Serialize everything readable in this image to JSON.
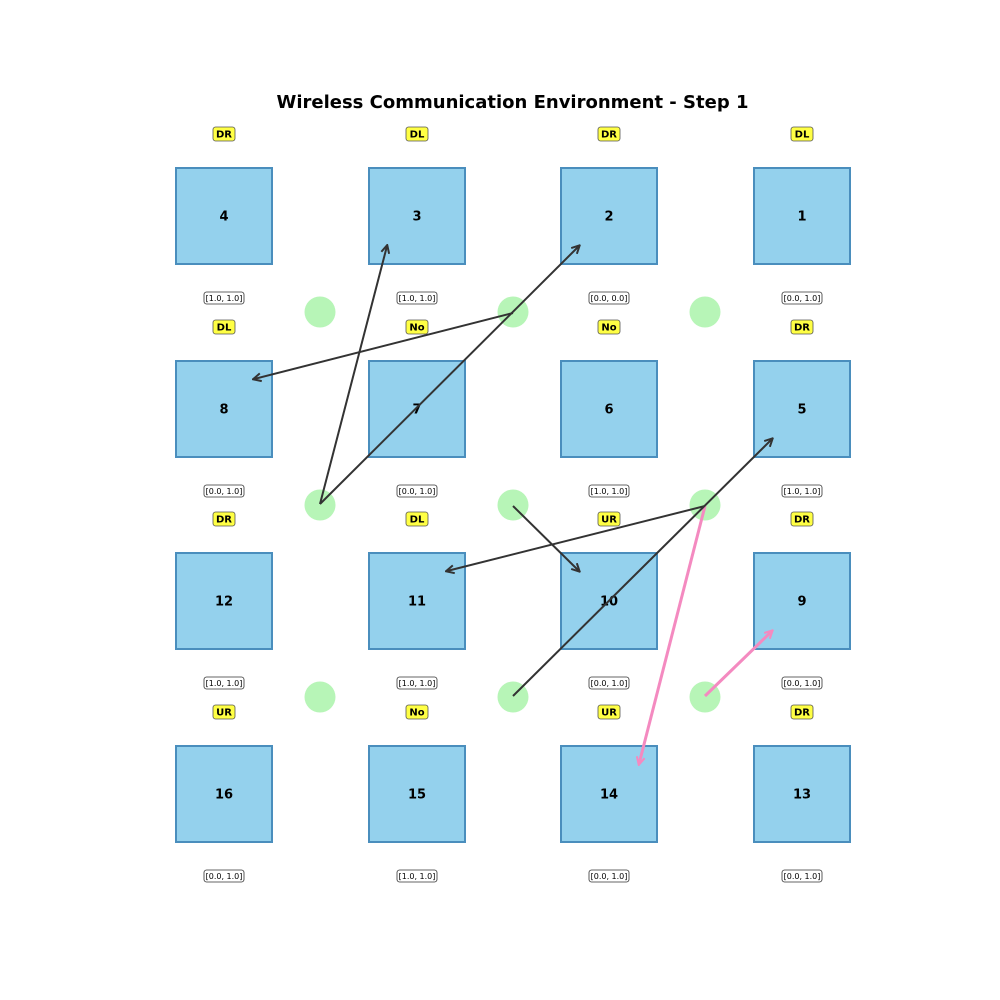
{
  "title": "Wireless Communication Environment - Step 1",
  "colors": {
    "user_fill": "#94d1ed",
    "user_stroke": "#4a8ebd",
    "station_fill": "#b7f5b7",
    "action_badge": "#ffff44",
    "arrow_default": "#333333",
    "arrow_highlight": "#f48ac0"
  },
  "users": [
    {
      "id": "4",
      "action": "DR",
      "value": "[1.0, 1.0]"
    },
    {
      "id": "8",
      "action": "DL",
      "value": "[0.0, 1.0]"
    },
    {
      "id": "12",
      "action": "DR",
      "value": "[1.0, 1.0]"
    },
    {
      "id": "16",
      "action": "UR",
      "value": "[0.0, 1.0]"
    },
    {
      "id": "3",
      "action": "DL",
      "value": "[1.0, 1.0]"
    },
    {
      "id": "7",
      "action": "No",
      "value": "[0.0, 1.0]"
    },
    {
      "id": "11",
      "action": "DL",
      "value": "[1.0, 1.0]"
    },
    {
      "id": "15",
      "action": "No",
      "value": "[1.0, 1.0]"
    },
    {
      "id": "2",
      "action": "DR",
      "value": "[0.0, 0.0]"
    },
    {
      "id": "6",
      "action": "No",
      "value": "[1.0, 1.0]"
    },
    {
      "id": "10",
      "action": "UR",
      "value": "[0.0, 1.0]"
    },
    {
      "id": "14",
      "action": "UR",
      "value": "[0.0, 1.0]"
    },
    {
      "id": "1",
      "action": "DL",
      "value": "[0.0, 1.0]"
    },
    {
      "id": "5",
      "action": "DR",
      "value": "[1.0, 1.0]"
    },
    {
      "id": "9",
      "action": "DR",
      "value": "[0.0, 1.0]"
    },
    {
      "id": "13",
      "action": "DR",
      "value": "[0.0, 1.0]"
    }
  ],
  "links": [
    {
      "from_station": "s-top-mid",
      "to_user": "8",
      "highlight": false
    },
    {
      "from_station": "s-mid-left",
      "to_user": "3",
      "highlight": false
    },
    {
      "from_station": "s-mid-left",
      "to_user": "2",
      "highlight": false
    },
    {
      "from_station": "s-mid-mid",
      "to_user": "10",
      "highlight": false
    },
    {
      "from_station": "s-mid-right",
      "to_user": "11",
      "highlight": false
    },
    {
      "from_station": "s-mid-right",
      "to_user": "14",
      "highlight": true
    },
    {
      "from_station": "s-bot-mid",
      "to_user": "5",
      "highlight": false
    },
    {
      "from_station": "s-bot-right",
      "to_user": "9",
      "highlight": true
    }
  ]
}
